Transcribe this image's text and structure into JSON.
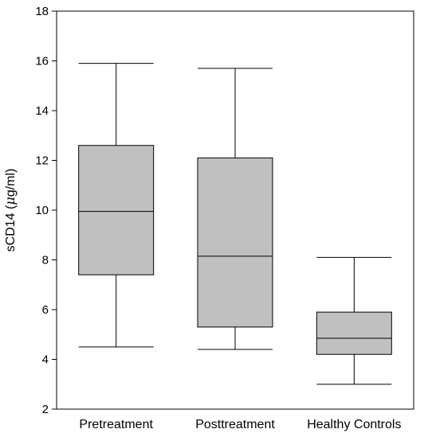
{
  "chart_data": {
    "type": "boxplot",
    "title": "",
    "xlabel": "",
    "ylabel": "sCD14 (",
    "ylabel_symbol": "μ",
    "ylabel_unit": "g/ml)",
    "ylim": [
      2,
      18
    ],
    "yticks": [
      2,
      4,
      6,
      8,
      10,
      12,
      14,
      16,
      18
    ],
    "grid": false,
    "legend": "none",
    "box_fill": "#c0c0c0",
    "stroke": "#000000",
    "categories": [
      "Pretreatment",
      "Posttreatment",
      "Healthy Controls"
    ],
    "boxes": [
      {
        "category": "Pretreatment",
        "whisker_low": 4.5,
        "q1": 7.4,
        "median": 9.95,
        "q3": 12.6,
        "whisker_high": 15.9
      },
      {
        "category": "Posttreatment",
        "whisker_low": 4.4,
        "q1": 5.3,
        "median": 8.15,
        "q3": 12.1,
        "whisker_high": 15.7
      },
      {
        "category": "Healthy Controls",
        "whisker_low": 3.0,
        "q1": 4.2,
        "median": 4.85,
        "q3": 5.9,
        "whisker_high": 8.1
      }
    ]
  }
}
